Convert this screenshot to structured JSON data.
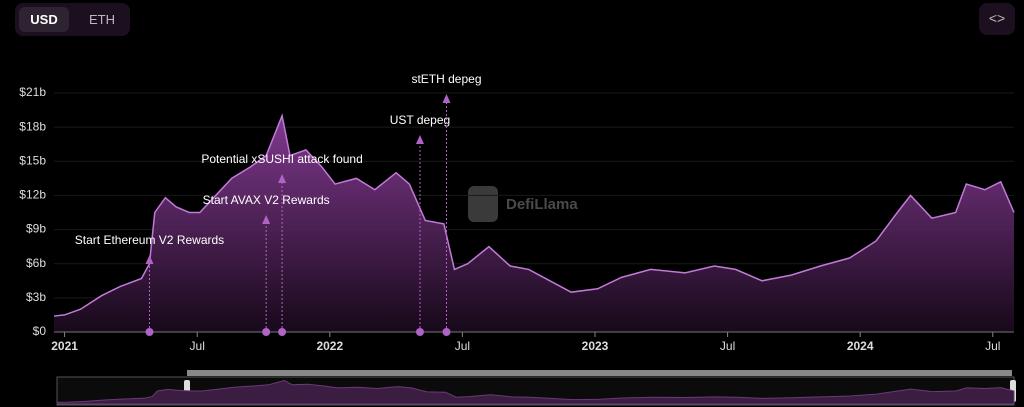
{
  "toggle": {
    "options": [
      "USD",
      "ETH"
    ]
  },
  "watermark": "DefiLlama",
  "chart_data": {
    "type": "area",
    "color": "#c27ad8",
    "grid": true,
    "x": [
      2020.96,
      2021.0,
      2021.06,
      2021.14,
      2021.21,
      2021.29,
      2021.32,
      2021.34,
      2021.38,
      2021.42,
      2021.47,
      2021.51,
      2021.57,
      2021.63,
      2021.7,
      2021.76,
      2021.82,
      2021.85,
      2021.91,
      2021.97,
      2022.02,
      2022.1,
      2022.17,
      2022.25,
      2022.3,
      2022.36,
      2022.43,
      2022.47,
      2022.52,
      2022.6,
      2022.68,
      2022.75,
      2022.83,
      2022.91,
      2023.01,
      2023.1,
      2023.21,
      2023.34,
      2023.45,
      2023.53,
      2023.63,
      2023.74,
      2023.85,
      2023.96,
      2024.06,
      2024.14,
      2024.19,
      2024.27,
      2024.36,
      2024.4,
      2024.47,
      2024.53,
      2024.58
    ],
    "values": [
      1.4,
      1.5,
      2.0,
      3.2,
      4.0,
      4.7,
      6.0,
      10.5,
      11.8,
      11.0,
      10.5,
      10.5,
      12.0,
      13.5,
      14.5,
      15.5,
      19.0,
      15.5,
      16.0,
      14.5,
      13.0,
      13.5,
      12.5,
      14.0,
      13.0,
      9.8,
      9.5,
      5.5,
      6.0,
      7.5,
      5.8,
      5.5,
      4.5,
      3.5,
      3.8,
      4.8,
      5.5,
      5.2,
      5.8,
      5.5,
      4.5,
      5.0,
      5.8,
      6.5,
      8.0,
      10.5,
      12.0,
      10.0,
      10.5,
      13.0,
      12.5,
      13.2,
      10.5
    ],
    "xlim": [
      2020.96,
      2024.58
    ],
    "xticks": [
      {
        "value": 2021,
        "label": "2021"
      },
      {
        "value": 2021.5,
        "label": "Jul"
      },
      {
        "value": 2022,
        "label": "2022"
      },
      {
        "value": 2022.5,
        "label": "Jul"
      },
      {
        "value": 2023,
        "label": "2023"
      },
      {
        "value": 2023.5,
        "label": "Jul"
      },
      {
        "value": 2024,
        "label": "2024"
      },
      {
        "value": 2024.5,
        "label": "Jul"
      }
    ],
    "ylim": [
      0,
      21
    ],
    "yticks": [
      {
        "value": 0,
        "label": "$0"
      },
      {
        "value": 3,
        "label": "$3b"
      },
      {
        "value": 6,
        "label": "$6b"
      },
      {
        "value": 9,
        "label": "$9b"
      },
      {
        "value": 12,
        "label": "$12b"
      },
      {
        "value": 15,
        "label": "$15b"
      },
      {
        "value": 18,
        "label": "$18b"
      },
      {
        "value": 21,
        "label": "$21b"
      }
    ],
    "annotations": [
      {
        "text": "Start Ethereum V2 Rewards",
        "x": 2021.32
      },
      {
        "text": "Start AVAX V2 Rewards",
        "x": 2021.76
      },
      {
        "text": "Potential xSUSHI attack found",
        "x": 2021.82
      },
      {
        "text": "UST depeg",
        "x": 2022.34
      },
      {
        "text": "stETH depeg",
        "x": 2022.44
      }
    ]
  }
}
